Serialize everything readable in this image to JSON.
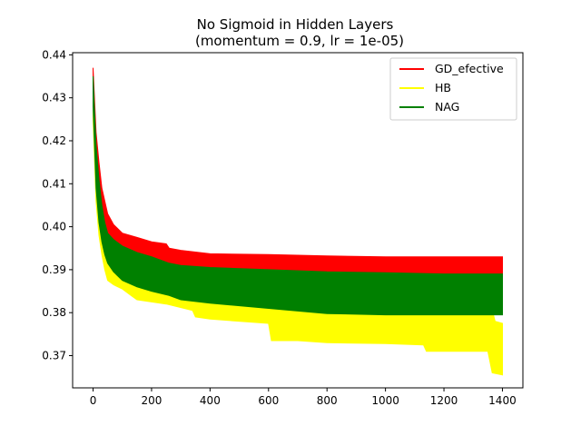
{
  "chart_data": {
    "type": "area",
    "title": "No Sigmoid in Hidden Layers",
    "subtitle": "(momentum = 0.9, lr = 1e-05)",
    "xlabel": "",
    "ylabel": "",
    "xlim": [
      -70,
      1470
    ],
    "ylim": [
      0.3625,
      0.4405
    ],
    "x_ticks": [
      0,
      200,
      400,
      600,
      800,
      1000,
      1200,
      1400
    ],
    "x_tick_labels": [
      "0",
      "200",
      "400",
      "600",
      "800",
      "1000",
      "1200",
      "1400"
    ],
    "y_ticks": [
      0.37,
      0.38,
      0.39,
      0.4,
      0.41,
      0.42,
      0.43,
      0.44
    ],
    "y_tick_labels": [
      "0.37",
      "0.38",
      "0.39",
      "0.40",
      "0.41",
      "0.42",
      "0.43",
      "0.44"
    ],
    "grid": false,
    "legend_position": "top-right",
    "series": [
      {
        "name": "GD_efective",
        "color": "#ff0000",
        "upper": [
          [
            0,
            0.437
          ],
          [
            10,
            0.422
          ],
          [
            20,
            0.415
          ],
          [
            30,
            0.409
          ],
          [
            40,
            0.406
          ],
          [
            50,
            0.403
          ],
          [
            70,
            0.4005
          ],
          [
            100,
            0.3985
          ],
          [
            150,
            0.3975
          ],
          [
            200,
            0.3965
          ],
          [
            250,
            0.396
          ],
          [
            260,
            0.395
          ],
          [
            300,
            0.3945
          ],
          [
            400,
            0.3937
          ],
          [
            600,
            0.3935
          ],
          [
            800,
            0.3932
          ],
          [
            1000,
            0.393
          ],
          [
            1200,
            0.393
          ],
          [
            1400,
            0.393
          ]
        ],
        "lower": [
          [
            0,
            0.429
          ],
          [
            10,
            0.412
          ],
          [
            20,
            0.405
          ],
          [
            30,
            0.4
          ],
          [
            40,
            0.397
          ],
          [
            50,
            0.395
          ],
          [
            70,
            0.3935
          ],
          [
            100,
            0.392
          ],
          [
            150,
            0.391
          ],
          [
            200,
            0.3905
          ],
          [
            260,
            0.3895
          ],
          [
            300,
            0.389
          ],
          [
            400,
            0.3885
          ],
          [
            600,
            0.388
          ],
          [
            800,
            0.3878
          ],
          [
            1000,
            0.3876
          ],
          [
            1200,
            0.3875
          ],
          [
            1400,
            0.3875
          ]
        ]
      },
      {
        "name": "HB",
        "color": "#ffff00",
        "upper": [
          [
            0,
            0.431
          ],
          [
            10,
            0.415
          ],
          [
            20,
            0.406
          ],
          [
            30,
            0.401
          ],
          [
            40,
            0.398
          ],
          [
            50,
            0.3945
          ],
          [
            70,
            0.3925
          ],
          [
            100,
            0.391
          ],
          [
            150,
            0.389
          ],
          [
            200,
            0.3875
          ],
          [
            260,
            0.386
          ],
          [
            300,
            0.385
          ],
          [
            400,
            0.3845
          ],
          [
            600,
            0.3835
          ],
          [
            800,
            0.3825
          ],
          [
            1000,
            0.382
          ],
          [
            1200,
            0.382
          ],
          [
            1360,
            0.382
          ],
          [
            1375,
            0.378
          ],
          [
            1400,
            0.3775
          ]
        ],
        "lower": [
          [
            0,
            0.425
          ],
          [
            10,
            0.406
          ],
          [
            20,
            0.398
          ],
          [
            30,
            0.3935
          ],
          [
            40,
            0.39
          ],
          [
            50,
            0.3875
          ],
          [
            70,
            0.3865
          ],
          [
            100,
            0.3855
          ],
          [
            130,
            0.384
          ],
          [
            150,
            0.383
          ],
          [
            200,
            0.3825
          ],
          [
            250,
            0.382
          ],
          [
            340,
            0.3805
          ],
          [
            350,
            0.379
          ],
          [
            400,
            0.3785
          ],
          [
            600,
            0.3775
          ],
          [
            610,
            0.3735
          ],
          [
            700,
            0.3735
          ],
          [
            800,
            0.373
          ],
          [
            1000,
            0.3728
          ],
          [
            1130,
            0.3725
          ],
          [
            1140,
            0.371
          ],
          [
            1200,
            0.371
          ],
          [
            1350,
            0.371
          ],
          [
            1365,
            0.366
          ],
          [
            1400,
            0.3655
          ]
        ]
      },
      {
        "name": "NAG",
        "color": "#008000",
        "upper": [
          [
            0,
            0.435
          ],
          [
            10,
            0.419
          ],
          [
            20,
            0.411
          ],
          [
            30,
            0.405
          ],
          [
            40,
            0.401
          ],
          [
            50,
            0.3985
          ],
          [
            70,
            0.397
          ],
          [
            100,
            0.3955
          ],
          [
            150,
            0.394
          ],
          [
            200,
            0.393
          ],
          [
            260,
            0.3915
          ],
          [
            300,
            0.391
          ],
          [
            400,
            0.3905
          ],
          [
            600,
            0.39
          ],
          [
            800,
            0.3895
          ],
          [
            1000,
            0.3893
          ],
          [
            1200,
            0.389
          ],
          [
            1400,
            0.389
          ]
        ],
        "lower": [
          [
            0,
            0.428
          ],
          [
            10,
            0.409
          ],
          [
            20,
            0.401
          ],
          [
            30,
            0.3965
          ],
          [
            40,
            0.3935
          ],
          [
            50,
            0.3915
          ],
          [
            70,
            0.3895
          ],
          [
            100,
            0.3875
          ],
          [
            150,
            0.386
          ],
          [
            200,
            0.385
          ],
          [
            260,
            0.384
          ],
          [
            300,
            0.383
          ],
          [
            400,
            0.3822
          ],
          [
            600,
            0.381
          ],
          [
            800,
            0.3798
          ],
          [
            1000,
            0.3795
          ],
          [
            1200,
            0.3795
          ],
          [
            1400,
            0.3795
          ]
        ]
      }
    ]
  }
}
